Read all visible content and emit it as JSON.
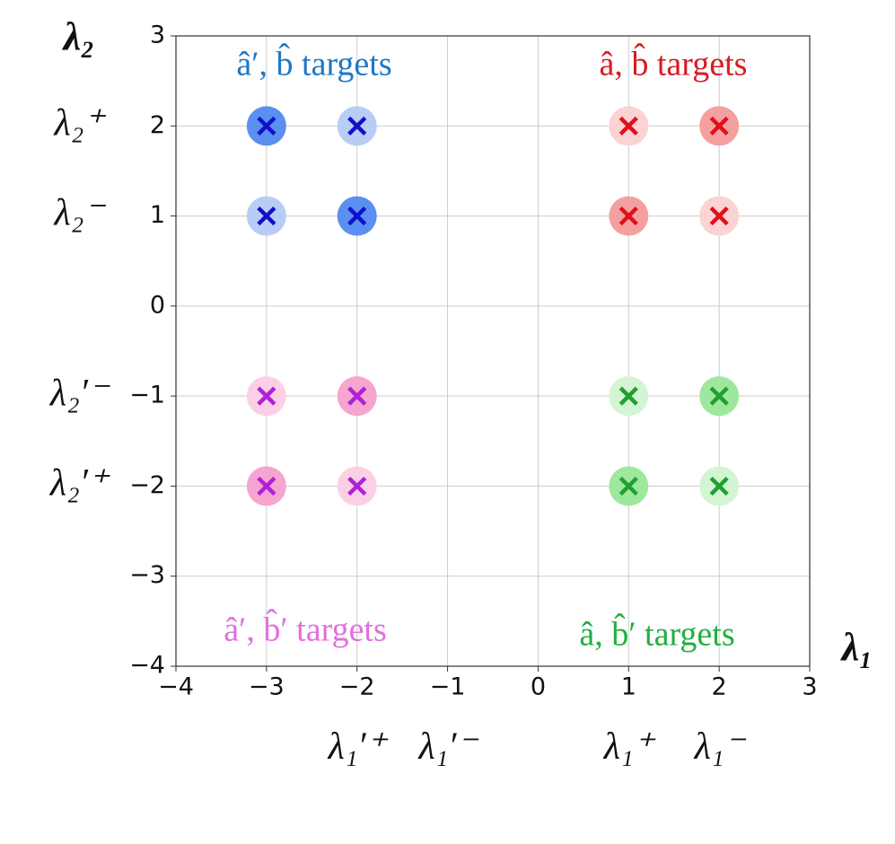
{
  "chart_data": {
    "type": "scatter",
    "x_label": "λ₁",
    "y_label": "λ₂",
    "xlim": [
      -4,
      3
    ],
    "ylim": [
      -4,
      3
    ],
    "xticks": [
      {
        "value": -4,
        "label": "−4"
      },
      {
        "value": -3,
        "label": "−3"
      },
      {
        "value": -2,
        "label": "−2"
      },
      {
        "value": -1,
        "label": "−1"
      },
      0,
      1,
      2,
      3
    ],
    "yticks": [
      {
        "value": -4,
        "label": "−4"
      },
      {
        "value": -3,
        "label": "−3"
      },
      {
        "value": -2,
        "label": "−2"
      },
      {
        "value": -1,
        "label": "−1"
      },
      0,
      1,
      2,
      3
    ],
    "x_symbol_ticks": [
      {
        "value": -2,
        "label": "λ₁′⁺"
      },
      {
        "value": -1,
        "label": "λ₁′⁻"
      },
      {
        "value": 1,
        "label": "λ₁⁺"
      },
      {
        "value": 2,
        "label": "λ₁⁻"
      }
    ],
    "y_symbol_ticks": [
      {
        "value": 2,
        "label": "λ₂⁺"
      },
      {
        "value": 1,
        "label": "λ₂⁻"
      },
      {
        "value": -1,
        "label": "λ₂′⁻"
      },
      {
        "value": -2,
        "label": "λ₂′⁺"
      }
    ],
    "grid": true,
    "series": [
      {
        "name": "â′, b̂ targets",
        "color": "#1f77c4",
        "marker_color": "#1010c8",
        "x": [
          -3,
          -2,
          -3,
          -2
        ],
        "values": [
          2,
          2,
          1,
          1
        ],
        "point_colors": [
          "#5b8ff0",
          "#b8cdf5",
          "#b8cdf5",
          "#5b8ff0"
        ]
      },
      {
        "name": "â, b̂ targets",
        "color": "#d81b24",
        "marker_color": "#e0101a",
        "x": [
          1,
          2,
          1,
          2
        ],
        "values": [
          2,
          2,
          1,
          1
        ],
        "point_colors": [
          "#fbd3d3",
          "#f5a0a0",
          "#f5a0a0",
          "#fbd3d3"
        ]
      },
      {
        "name": "â′, b̂′ targets",
        "color": "#e070e0",
        "marker_color": "#b020d8",
        "x": [
          -3,
          -2,
          -3,
          -2
        ],
        "values": [
          -1,
          -1,
          -2,
          -2
        ],
        "point_colors": [
          "#fbd0e6",
          "#f5a5cf",
          "#f5a5cf",
          "#fbd0e6"
        ]
      },
      {
        "name": "â, b̂′ targets",
        "color": "#20b040",
        "marker_color": "#20a030",
        "x": [
          1,
          2,
          1,
          2
        ],
        "values": [
          -1,
          -1,
          -2,
          -2
        ],
        "point_colors": [
          "#d3f5d3",
          "#9ee89e",
          "#9ee89e",
          "#d3f5d3"
        ]
      }
    ]
  }
}
